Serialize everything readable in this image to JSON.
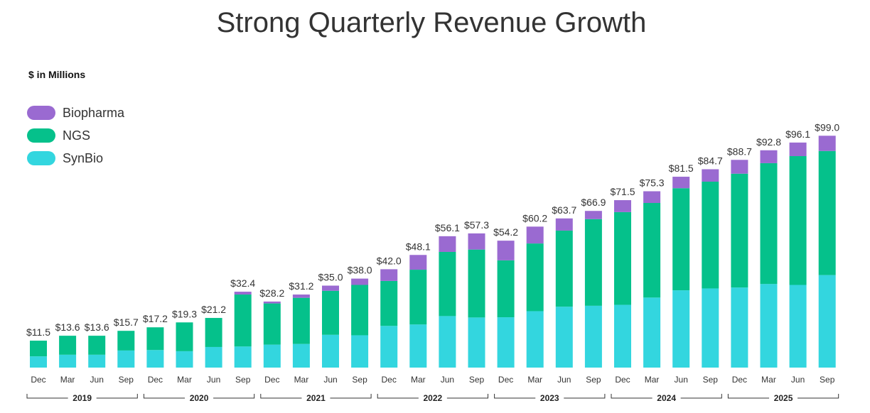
{
  "chart_data": {
    "type": "bar",
    "stacked": true,
    "title": "Strong Quarterly Revenue Growth",
    "units_label": "$ in Millions",
    "legend_placement": "top-left",
    "grid": false,
    "ylim": [
      0,
      100
    ],
    "categories": [
      "Dec",
      "Mar",
      "Jun",
      "Sep",
      "Dec",
      "Mar",
      "Jun",
      "Sep",
      "Dec",
      "Mar",
      "Jun",
      "Sep",
      "Dec",
      "Mar",
      "Jun",
      "Sep",
      "Dec",
      "Mar",
      "Jun",
      "Sep",
      "Dec",
      "Mar",
      "Jun",
      "Sep",
      "Dec",
      "Mar",
      "Jun",
      "Sep"
    ],
    "years": [
      {
        "label": "2019",
        "start": 0,
        "end": 3
      },
      {
        "label": "2020",
        "start": 4,
        "end": 7
      },
      {
        "label": "2021",
        "start": 8,
        "end": 11
      },
      {
        "label": "2022",
        "start": 12,
        "end": 15
      },
      {
        "label": "2023",
        "start": 16,
        "end": 19
      },
      {
        "label": "2024",
        "start": 20,
        "end": 23
      },
      {
        "label": "2025",
        "start": 24,
        "end": 27
      }
    ],
    "totals": [
      11.5,
      13.6,
      13.6,
      15.7,
      17.2,
      19.3,
      21.2,
      32.4,
      28.2,
      31.2,
      35.0,
      38.0,
      42.0,
      48.1,
      56.1,
      57.3,
      54.2,
      60.2,
      63.7,
      66.9,
      71.5,
      75.3,
      81.5,
      84.7,
      88.7,
      92.8,
      96.1,
      99.0
    ],
    "total_labels": [
      "$11.5",
      "$13.6",
      "$13.6",
      "$15.7",
      "$17.2",
      "$19.3",
      "$21.2",
      "$32.4",
      "$28.2",
      "$31.2",
      "$35.0",
      "$38.0",
      "$42.0",
      "$48.1",
      "$56.1",
      "$57.3",
      "$54.2",
      "$60.2",
      "$63.7",
      "$66.9",
      "$71.5",
      "$75.3",
      "$81.5",
      "$84.7",
      "$88.7",
      "$92.8",
      "$96.1",
      "$99.0"
    ],
    "series": [
      {
        "name": "SynBio",
        "color": "#33d6df",
        "values": [
          4.8,
          5.5,
          5.5,
          7.3,
          7.5,
          7.0,
          8.8,
          9.0,
          9.8,
          10.1,
          14.0,
          13.8,
          17.8,
          18.4,
          22.0,
          21.4,
          21.5,
          24.1,
          26.0,
          26.4,
          26.8,
          29.9,
          33.0,
          33.8,
          34.2,
          35.7,
          35.3,
          39.5
        ]
      },
      {
        "name": "NGS",
        "color": "#05c18b",
        "values": [
          6.7,
          8.1,
          8.1,
          8.4,
          9.7,
          12.3,
          12.4,
          22.2,
          17.6,
          19.7,
          18.8,
          21.5,
          19.2,
          23.4,
          27.4,
          29.0,
          24.3,
          28.9,
          32.5,
          37.0,
          39.6,
          40.4,
          43.6,
          45.6,
          48.6,
          51.6,
          55.0,
          53.0
        ]
      },
      {
        "name": "Biopharma",
        "color": "#9a6ad1",
        "values": [
          0,
          0,
          0,
          0,
          0,
          0,
          0,
          1.2,
          0.8,
          1.4,
          2.2,
          2.7,
          5.0,
          6.3,
          6.7,
          6.9,
          8.4,
          7.2,
          5.2,
          3.5,
          5.1,
          5.0,
          4.9,
          5.3,
          5.9,
          5.5,
          5.8,
          6.5
        ]
      }
    ]
  }
}
